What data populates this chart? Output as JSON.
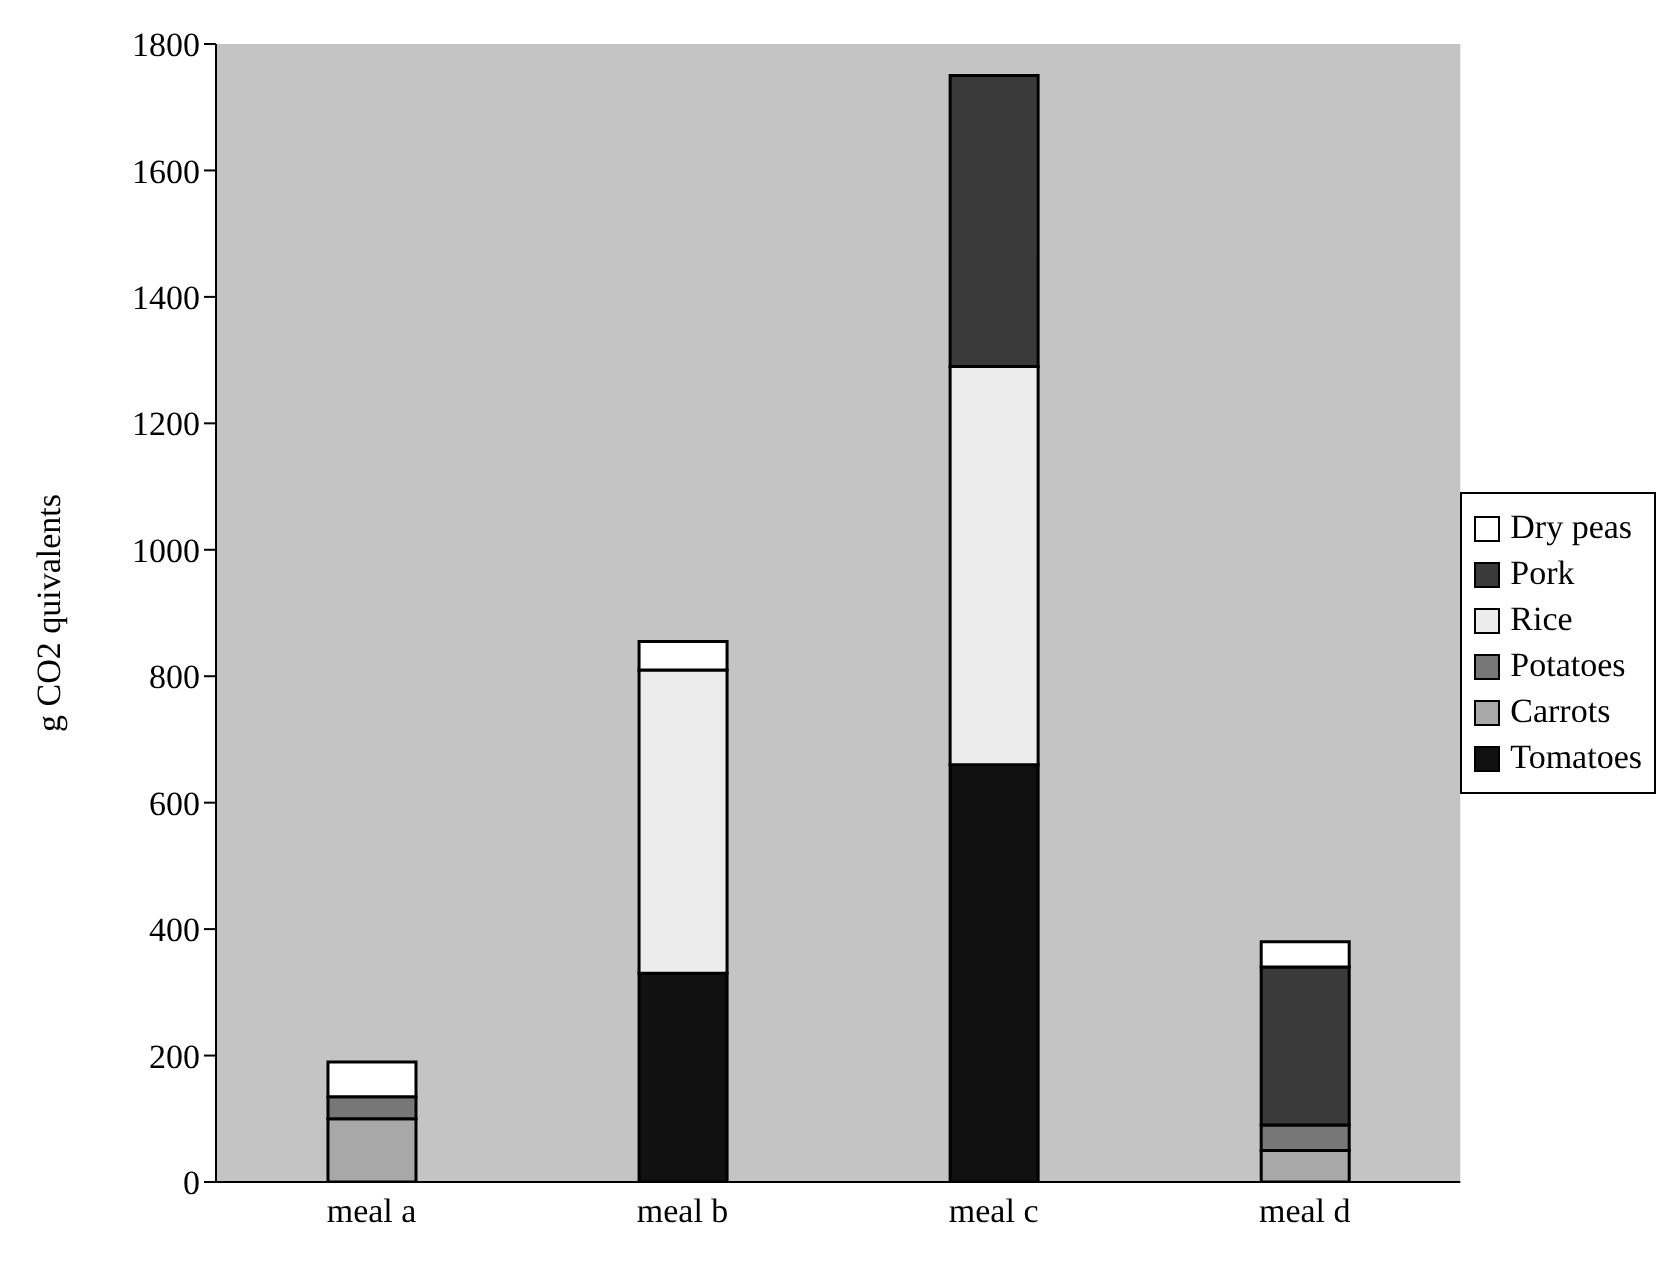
{
  "chart_data": {
    "type": "bar",
    "ylabel": "g CO2 quivalents",
    "categories": [
      "meal a",
      "meal b",
      "meal c",
      "meal d"
    ],
    "stacked": true,
    "legend": "right",
    "ylim": [
      0,
      1800
    ],
    "yticks": [
      0,
      200,
      400,
      600,
      800,
      1000,
      1200,
      1400,
      1600,
      1800
    ],
    "series": [
      {
        "name": "Tomatoes",
        "color": "#111111",
        "values": [
          0,
          330,
          660,
          0
        ]
      },
      {
        "name": "Carrots",
        "color": "#a8a8a8",
        "values": [
          100,
          0,
          0,
          50
        ]
      },
      {
        "name": "Potatoes",
        "color": "#777777",
        "values": [
          35,
          0,
          0,
          40
        ]
      },
      {
        "name": "Rice",
        "color": "#ececec",
        "values": [
          0,
          480,
          630,
          0
        ]
      },
      {
        "name": "Pork",
        "color": "#3a3a3a",
        "values": [
          0,
          0,
          460,
          250
        ]
      },
      {
        "name": "Dry peas",
        "color": "#ffffff",
        "values": [
          55,
          45,
          0,
          40
        ]
      }
    ]
  }
}
